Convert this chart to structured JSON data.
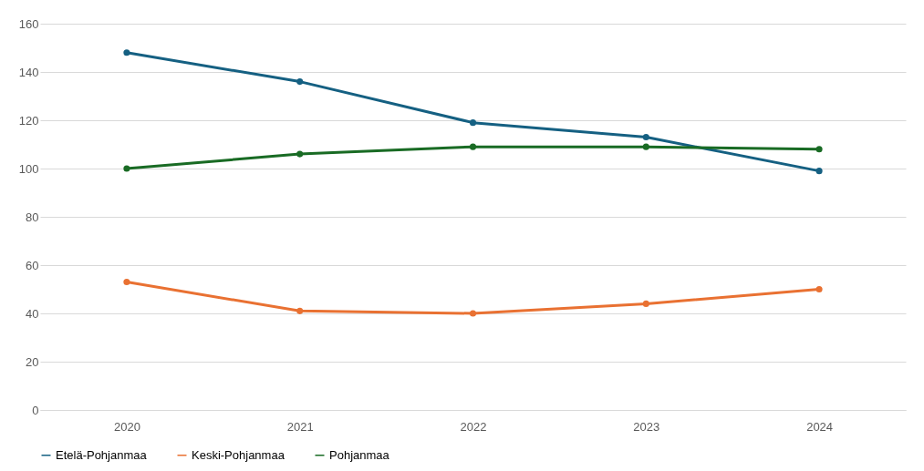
{
  "chart_data": {
    "type": "line",
    "categories": [
      "2020",
      "2021",
      "2022",
      "2023",
      "2024"
    ],
    "series": [
      {
        "name": "Etelä-Pohjanmaa",
        "color": "#156082",
        "values": [
          148,
          136,
          119,
          113,
          99
        ]
      },
      {
        "name": "Keski-Pohjanmaa",
        "color": "#e97132",
        "values": [
          53,
          41,
          40,
          44,
          50
        ]
      },
      {
        "name": "Pohjanmaa",
        "color": "#196b24",
        "values": [
          100,
          106,
          109,
          109,
          108
        ]
      }
    ],
    "ylim": [
      0,
      160
    ],
    "yticks": [
      0,
      20,
      40,
      60,
      80,
      100,
      120,
      140,
      160
    ],
    "grid": "y",
    "legend": "bottom",
    "marker": "circle",
    "line_style": "solid"
  }
}
